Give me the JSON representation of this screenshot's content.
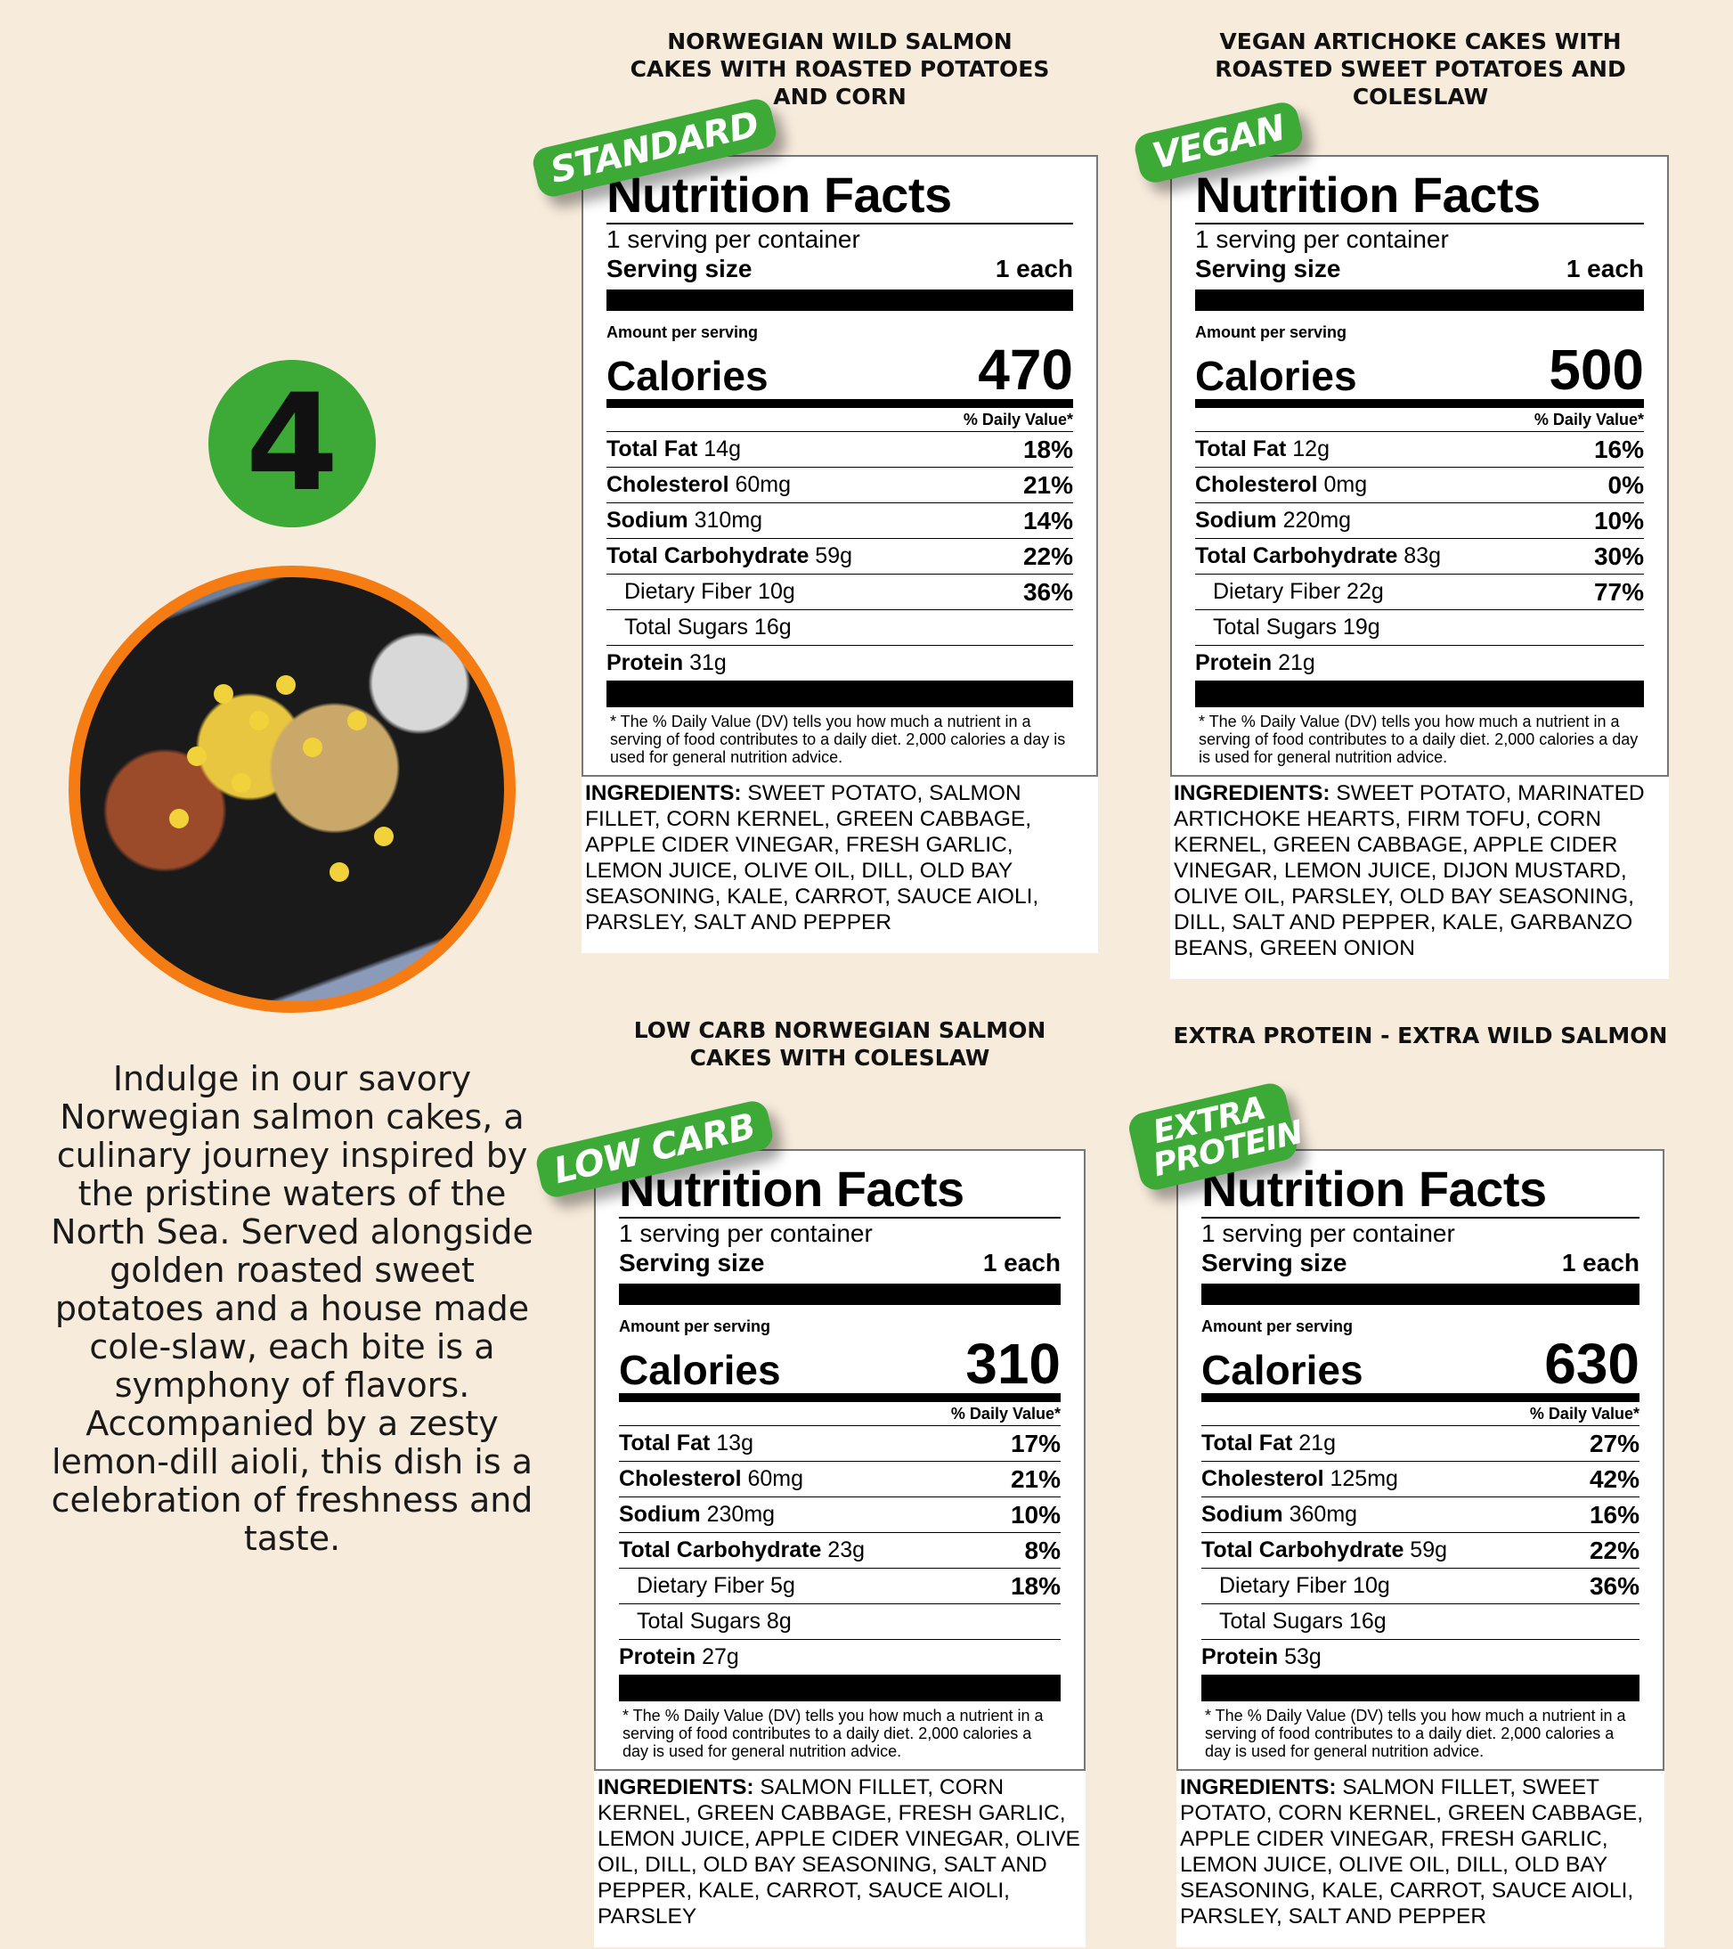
{
  "number": "4",
  "description": "Indulge in our savory Norwegian salmon cakes, a culinary journey inspired by the pristine waters of the North Sea. Served alongside golden roasted sweet potatoes and a house made cole-slaw, each bite is a symphony of flavors. Accompanied by a zesty lemon-dill aioli, this dish is a celebration of freshness and taste.",
  "common": {
    "nf_title": "Nutrition Facts",
    "servings": "1 serving per container",
    "serving_size_label": "Serving size",
    "serving_size": "1 each",
    "amount_per_serving": "Amount per serving",
    "calories_label": "Calories",
    "daily_value": "% Daily Value*",
    "footnote": "* The % Daily Value (DV) tells you how much a nutrient in a serving of food contributes to a daily diet. 2,000 calories a day is used for general nutrition advice.",
    "ingredients_label": "INGREDIENTS:"
  },
  "badge_color": "#3daa37",
  "accent_orange": "#f57c12",
  "labels": [
    {
      "title": "NORWEGIAN WILD SALMON CAKES WITH ROASTED POTATOES AND CORN",
      "badge": "STANDARD",
      "calories": "470",
      "rows": [
        {
          "name": "Total Fat",
          "amt": "14g",
          "pct": "18%"
        },
        {
          "name": "Cholesterol",
          "amt": "60mg",
          "pct": "21%"
        },
        {
          "name": "Sodium",
          "amt": "310mg",
          "pct": "14%"
        },
        {
          "name": "Total Carbohydrate",
          "amt": "59g",
          "pct": "22%"
        },
        {
          "name": "Dietary Fiber",
          "amt": "10g",
          "pct": "36%",
          "indent": true
        },
        {
          "name": "Total Sugars",
          "amt": "16g",
          "pct": "",
          "indent": true
        },
        {
          "name": "Protein",
          "amt": "31g",
          "pct": ""
        }
      ],
      "ingredients": "SWEET POTATO, SALMON FILLET, CORN KERNEL, GREEN CABBAGE, APPLE CIDER VINEGAR, FRESH GARLIC, LEMON JUICE, OLIVE OIL, DILL, OLD BAY SEASONING, KALE, CARROT, SAUCE AIOLI, PARSLEY, SALT AND PEPPER"
    },
    {
      "title": "VEGAN ARTICHOKE CAKES WITH ROASTED SWEET POTATOES AND COLESLAW",
      "badge": "VEGAN",
      "calories": "500",
      "rows": [
        {
          "name": "Total Fat",
          "amt": "12g",
          "pct": "16%"
        },
        {
          "name": "Cholesterol",
          "amt": "0mg",
          "pct": "0%"
        },
        {
          "name": "Sodium",
          "amt": "220mg",
          "pct": "10%"
        },
        {
          "name": "Total Carbohydrate",
          "amt": "83g",
          "pct": "30%"
        },
        {
          "name": "Dietary Fiber",
          "amt": "22g",
          "pct": "77%",
          "indent": true
        },
        {
          "name": "Total Sugars",
          "amt": "19g",
          "pct": "",
          "indent": true
        },
        {
          "name": "Protein",
          "amt": "21g",
          "pct": ""
        }
      ],
      "ingredients": "SWEET POTATO, MARINATED ARTICHOKE HEARTS, FIRM TOFU, CORN KERNEL, GREEN CABBAGE, APPLE CIDER VINEGAR, LEMON JUICE, DIJON MUSTARD, OLIVE OIL, PARSLEY, OLD BAY SEASONING, DILL, SALT AND PEPPER, KALE, GARBANZO BEANS, GREEN ONION"
    },
    {
      "title": "LOW CARB NORWEGIAN SALMON CAKES WITH COLESLAW",
      "badge": "LOW CARB",
      "calories": "310",
      "rows": [
        {
          "name": "Total Fat",
          "amt": "13g",
          "pct": "17%"
        },
        {
          "name": "Cholesterol",
          "amt": "60mg",
          "pct": "21%"
        },
        {
          "name": "Sodium",
          "amt": "230mg",
          "pct": "10%"
        },
        {
          "name": "Total Carbohydrate",
          "amt": "23g",
          "pct": "8%"
        },
        {
          "name": "Dietary Fiber",
          "amt": "5g",
          "pct": "18%",
          "indent": true
        },
        {
          "name": "Total Sugars",
          "amt": "8g",
          "pct": "",
          "indent": true
        },
        {
          "name": "Protein",
          "amt": "27g",
          "pct": ""
        }
      ],
      "ingredients": "SALMON FILLET, CORN KERNEL, GREEN CABBAGE, FRESH GARLIC, LEMON JUICE, APPLE CIDER VINEGAR, OLIVE OIL, DILL, OLD BAY SEASONING, SALT AND PEPPER, KALE, CARROT, SAUCE AIOLI, PARSLEY"
    },
    {
      "title": "EXTRA PROTEIN - EXTRA WILD SALMON",
      "badge": "EXTRA PROTEIN",
      "calories": "630",
      "rows": [
        {
          "name": "Total Fat",
          "amt": "21g",
          "pct": "27%"
        },
        {
          "name": "Cholesterol",
          "amt": "125mg",
          "pct": "42%"
        },
        {
          "name": "Sodium",
          "amt": "360mg",
          "pct": "16%"
        },
        {
          "name": "Total Carbohydrate",
          "amt": "59g",
          "pct": "22%"
        },
        {
          "name": "Dietary Fiber",
          "amt": "10g",
          "pct": "36%",
          "indent": true
        },
        {
          "name": "Total Sugars",
          "amt": "16g",
          "pct": "",
          "indent": true
        },
        {
          "name": "Protein",
          "amt": "53g",
          "pct": ""
        }
      ],
      "ingredients": "SALMON FILLET, SWEET POTATO, CORN KERNEL, GREEN CABBAGE, APPLE CIDER VINEGAR, FRESH GARLIC, LEMON JUICE, OLIVE OIL, DILL, OLD BAY SEASONING, KALE, CARROT, SAUCE AIOLI, PARSLEY, SALT AND PEPPER"
    }
  ]
}
